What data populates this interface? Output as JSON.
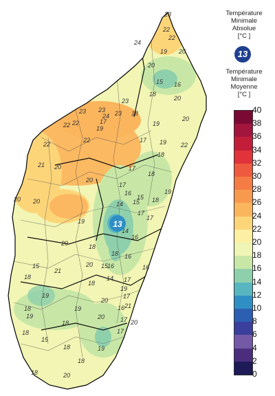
{
  "legend": {
    "absolute_title": "Température\nMinimale\nAbsolue\n[°C ]",
    "absolute_min_value": "13",
    "mean_title": "Température\nMinimale\nMoyenne\n[°C ]",
    "ticks": [
      "40",
      "38",
      "36",
      "34",
      "32",
      "30",
      "28",
      "26",
      "24",
      "22",
      "20",
      "18",
      "16",
      "14",
      "12",
      "10",
      "8",
      "6",
      "4",
      "2",
      "0"
    ],
    "bins": [
      {
        "range": "38-40",
        "color": "#7a0a33"
      },
      {
        "range": "36-38",
        "color": "#a3153c"
      },
      {
        "range": "34-36",
        "color": "#c21e3a"
      },
      {
        "range": "32-34",
        "color": "#e0333a"
      },
      {
        "range": "30-32",
        "color": "#ee5a3e"
      },
      {
        "range": "28-30",
        "color": "#f57c45"
      },
      {
        "range": "26-28",
        "color": "#f89a4e"
      },
      {
        "range": "24-26",
        "color": "#fbb55d"
      },
      {
        "range": "22-24",
        "color": "#fdd579"
      },
      {
        "range": "20-22",
        "color": "#fef0a3"
      },
      {
        "range": "18-20",
        "color": "#eef5b5"
      },
      {
        "range": "16-18",
        "color": "#c8e7a6"
      },
      {
        "range": "14-16",
        "color": "#8fd0ac"
      },
      {
        "range": "12-14",
        "color": "#58b6c0"
      },
      {
        "range": "10-12",
        "color": "#2f8fc5"
      },
      {
        "range": "8-10",
        "color": "#2c5fb1"
      },
      {
        "range": "6-8",
        "color": "#3a3f9d"
      },
      {
        "range": "4-6",
        "color": "#7459a6"
      },
      {
        "range": "2-4",
        "color": "#4b2d7d"
      },
      {
        "range": "0-2",
        "color": "#1c1a57"
      }
    ]
  },
  "map": {
    "absolute_min_marker": "13",
    "labels": [
      {
        "id": "a",
        "text": "22"
      },
      {
        "id": "b",
        "text": "23"
      },
      {
        "id": "c",
        "text": "22"
      },
      {
        "id": "d",
        "text": "24"
      },
      {
        "id": "e",
        "text": "19"
      },
      {
        "id": "f",
        "text": "20"
      },
      {
        "id": "g",
        "text": "20"
      },
      {
        "id": "h",
        "text": "15"
      },
      {
        "id": "i",
        "text": "16"
      },
      {
        "id": "j",
        "text": "18"
      },
      {
        "id": "k",
        "text": "20"
      },
      {
        "id": "l",
        "text": "23"
      },
      {
        "id": "m",
        "text": "23"
      },
      {
        "id": "n",
        "text": "24"
      },
      {
        "id": "o",
        "text": "23"
      },
      {
        "id": "p",
        "text": "18"
      },
      {
        "id": "q",
        "text": "19"
      },
      {
        "id": "r",
        "text": "20"
      },
      {
        "id": "s",
        "text": "23"
      },
      {
        "id": "t",
        "text": "22"
      },
      {
        "id": "u",
        "text": "17"
      },
      {
        "id": "v",
        "text": "19"
      },
      {
        "id": "w",
        "text": "22"
      },
      {
        "id": "x",
        "text": "22"
      },
      {
        "id": "y",
        "text": "22"
      },
      {
        "id": "z",
        "text": "17"
      },
      {
        "id": "aa",
        "text": "19"
      },
      {
        "id": "ab",
        "text": "18"
      },
      {
        "id": "ac",
        "text": "22"
      },
      {
        "id": "ad",
        "text": "21"
      },
      {
        "id": "ae",
        "text": "20"
      },
      {
        "id": "af",
        "text": "17"
      },
      {
        "id": "ag",
        "text": "20"
      },
      {
        "id": "ah",
        "text": "18"
      },
      {
        "id": "ai",
        "text": "19"
      },
      {
        "id": "aj",
        "text": "17"
      },
      {
        "id": "ak",
        "text": "16"
      },
      {
        "id": "al",
        "text": "18"
      },
      {
        "id": "am",
        "text": "14"
      },
      {
        "id": "an",
        "text": "17"
      },
      {
        "id": "ao",
        "text": "15"
      },
      {
        "id": "ap",
        "text": "15"
      },
      {
        "id": "aq",
        "text": "17"
      },
      {
        "id": "ar",
        "text": "19"
      },
      {
        "id": "as",
        "text": "14"
      },
      {
        "id": "at",
        "text": "16"
      },
      {
        "id": "au",
        "text": "20"
      },
      {
        "id": "av",
        "text": "18"
      },
      {
        "id": "aw",
        "text": "18"
      },
      {
        "id": "ax",
        "text": "16"
      },
      {
        "id": "ay",
        "text": "15"
      },
      {
        "id": "az",
        "text": "14"
      },
      {
        "id": "ba",
        "text": "16"
      },
      {
        "id": "bb",
        "text": "17"
      },
      {
        "id": "bc",
        "text": "20"
      },
      {
        "id": "bd",
        "text": "20"
      },
      {
        "id": "be",
        "text": "20"
      },
      {
        "id": "bf",
        "text": "18"
      },
      {
        "id": "bg",
        "text": "15"
      },
      {
        "id": "bh",
        "text": "21"
      },
      {
        "id": "bi",
        "text": "18"
      },
      {
        "id": "bj",
        "text": "19"
      },
      {
        "id": "bk",
        "text": "16"
      },
      {
        "id": "bl",
        "text": "19"
      },
      {
        "id": "bm",
        "text": "20"
      },
      {
        "id": "bn",
        "text": "16"
      },
      {
        "id": "bo",
        "text": "17"
      },
      {
        "id": "bp",
        "text": "21"
      },
      {
        "id": "bq",
        "text": "18"
      },
      {
        "id": "br",
        "text": "19"
      },
      {
        "id": "bs",
        "text": "20"
      },
      {
        "id": "bt",
        "text": "18"
      },
      {
        "id": "bu",
        "text": "17"
      },
      {
        "id": "bv",
        "text": "17"
      },
      {
        "id": "bw",
        "text": "20"
      },
      {
        "id": "bx",
        "text": "19"
      },
      {
        "id": "by",
        "text": "18"
      },
      {
        "id": "bz",
        "text": "15"
      },
      {
        "id": "ca",
        "text": "18"
      },
      {
        "id": "cb",
        "text": "19"
      },
      {
        "id": "cc",
        "text": "18"
      },
      {
        "id": "cd",
        "text": "18"
      },
      {
        "id": "ce",
        "text": "20"
      }
    ]
  }
}
